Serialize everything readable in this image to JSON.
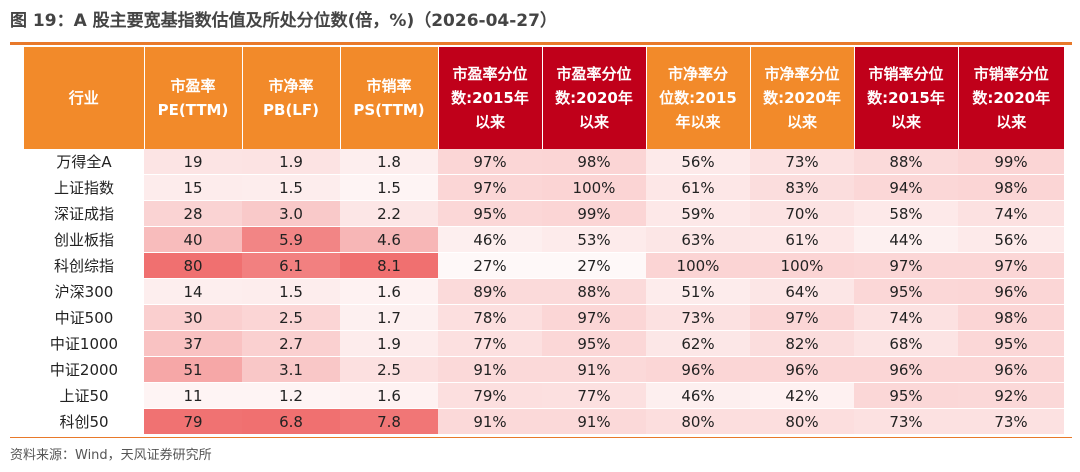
{
  "title": "图 19：A 股主要宽基指数估值及所处分位数(倍，%)（2026-04-27）",
  "source": "资料来源：Wind，天风证券研究所",
  "colors": {
    "header_orange": "#f28a2a",
    "header_red": "#c0001a",
    "rule": "#e8792a",
    "heat_high": "#f07070",
    "heat_low": "#ffffff"
  },
  "chart_data": {
    "type": "table",
    "columns": [
      {
        "key": "industry",
        "lines": [
          "行业"
        ],
        "style": "o"
      },
      {
        "key": "pe",
        "lines": [
          "市盈率",
          "PE(TTM)"
        ],
        "style": "o"
      },
      {
        "key": "pb",
        "lines": [
          "市净率",
          "PB(LF)"
        ],
        "style": "o"
      },
      {
        "key": "ps",
        "lines": [
          "市销率",
          "PS(TTM)"
        ],
        "style": "o"
      },
      {
        "key": "pe_pct_2015",
        "lines": [
          "市盈率分位",
          "数:2015年",
          "以来"
        ],
        "style": "r"
      },
      {
        "key": "pe_pct_2020",
        "lines": [
          "市盈率分位",
          "数:2020年",
          "以来"
        ],
        "style": "r"
      },
      {
        "key": "pb_pct_2015",
        "lines": [
          "市净率分",
          "位数:2015",
          "年以来"
        ],
        "style": "o"
      },
      {
        "key": "pb_pct_2020",
        "lines": [
          "市净率分位",
          "数:2020年",
          "以来"
        ],
        "style": "o"
      },
      {
        "key": "ps_pct_2015",
        "lines": [
          "市销率分位",
          "数:2015年",
          "以来"
        ],
        "style": "r"
      },
      {
        "key": "ps_pct_2020",
        "lines": [
          "市销率分位",
          "数:2020年",
          "以来"
        ],
        "style": "r"
      }
    ],
    "rows": [
      {
        "name": "万得全A",
        "pe": "19",
        "pb": "1.9",
        "ps": "1.8",
        "p": [
          "97%",
          "98%",
          "56%",
          "73%",
          "88%",
          "99%"
        ]
      },
      {
        "name": "上证指数",
        "pe": "15",
        "pb": "1.5",
        "ps": "1.5",
        "p": [
          "97%",
          "100%",
          "61%",
          "83%",
          "94%",
          "98%"
        ]
      },
      {
        "name": "深证成指",
        "pe": "28",
        "pb": "3.0",
        "ps": "2.2",
        "p": [
          "95%",
          "99%",
          "59%",
          "70%",
          "58%",
          "74%"
        ]
      },
      {
        "name": "创业板指",
        "pe": "40",
        "pb": "5.9",
        "ps": "4.6",
        "p": [
          "46%",
          "53%",
          "63%",
          "61%",
          "44%",
          "56%"
        ]
      },
      {
        "name": "科创综指",
        "pe": "80",
        "pb": "6.1",
        "ps": "8.1",
        "p": [
          "27%",
          "27%",
          "100%",
          "100%",
          "97%",
          "97%"
        ]
      },
      {
        "name": "沪深300",
        "pe": "14",
        "pb": "1.5",
        "ps": "1.6",
        "p": [
          "89%",
          "88%",
          "51%",
          "64%",
          "95%",
          "96%"
        ]
      },
      {
        "name": "中证500",
        "pe": "30",
        "pb": "2.5",
        "ps": "1.7",
        "p": [
          "78%",
          "97%",
          "73%",
          "97%",
          "74%",
          "98%"
        ]
      },
      {
        "name": "中证1000",
        "pe": "37",
        "pb": "2.7",
        "ps": "1.9",
        "p": [
          "77%",
          "95%",
          "62%",
          "82%",
          "68%",
          "95%"
        ]
      },
      {
        "name": "中证2000",
        "pe": "51",
        "pb": "3.1",
        "ps": "2.5",
        "p": [
          "91%",
          "91%",
          "96%",
          "96%",
          "96%",
          "96%"
        ]
      },
      {
        "name": "上证50",
        "pe": "11",
        "pb": "1.2",
        "ps": "1.6",
        "p": [
          "79%",
          "77%",
          "46%",
          "42%",
          "95%",
          "92%"
        ]
      },
      {
        "name": "科创50",
        "pe": "79",
        "pb": "6.8",
        "ps": "7.8",
        "p": [
          "91%",
          "91%",
          "80%",
          "80%",
          "73%",
          "73%"
        ]
      }
    ]
  }
}
